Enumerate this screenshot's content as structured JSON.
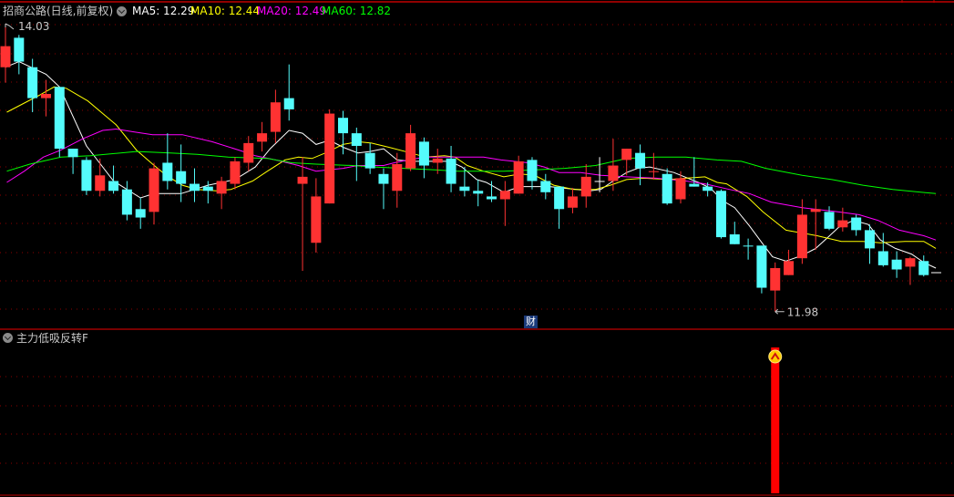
{
  "header": {
    "title": "招商公路(日线,前复权)",
    "ma5_label": "MA5: 12.29",
    "ma10_label": "MA10: 12.44",
    "ma20_label": "MA20: 12.49",
    "ma60_label": "MA60: 12.82"
  },
  "indicator_panel": {
    "title": "主力低吸反转F",
    "signal_candle_index": 58,
    "signal_icon": "up-chevron-circle-icon"
  },
  "finance_marker": {
    "label": "财",
    "candle_index": 40
  },
  "colors": {
    "up": "#ff3232",
    "down": "#54fcfc",
    "flat": "#ffffff",
    "ma5": "#ffffff",
    "ma10": "#ffff00",
    "ma20": "#ff00ff",
    "ma60": "#00ff00",
    "grid": "#8b0000",
    "border": "#c00000",
    "signal_bar": "#ff0000"
  },
  "chart_data": {
    "type": "candlestick",
    "price_high": {
      "label": "14.03",
      "value": 14.03,
      "candle_index": 1
    },
    "price_low": {
      "label": "11.98",
      "value": 11.98,
      "candle_index": 58
    },
    "ohlc_order": [
      "open",
      "high",
      "low",
      "close"
    ],
    "candles": [
      [
        13.72,
        14.03,
        13.61,
        13.87
      ],
      [
        13.93,
        13.95,
        13.67,
        13.76
      ],
      [
        13.72,
        13.78,
        13.4,
        13.5
      ],
      [
        13.5,
        13.63,
        13.37,
        13.53
      ],
      [
        13.58,
        13.58,
        13.08,
        13.14
      ],
      [
        13.14,
        13.14,
        12.96,
        13.08
      ],
      [
        13.06,
        13.08,
        12.81,
        12.84
      ],
      [
        12.84,
        13.07,
        12.8,
        12.95
      ],
      [
        12.91,
        13.02,
        12.82,
        12.84
      ],
      [
        12.85,
        12.91,
        12.63,
        12.67
      ],
      [
        12.71,
        12.79,
        12.57,
        12.65
      ],
      [
        12.69,
        13.04,
        12.6,
        13.0
      ],
      [
        13.04,
        13.25,
        12.85,
        12.91
      ],
      [
        12.98,
        13.17,
        12.76,
        12.89
      ],
      [
        12.89,
        13.0,
        12.76,
        12.84
      ],
      [
        12.87,
        12.91,
        12.75,
        12.84
      ],
      [
        12.82,
        12.94,
        12.71,
        12.91
      ],
      [
        12.89,
        13.08,
        12.85,
        13.05
      ],
      [
        13.04,
        13.23,
        12.98,
        13.18
      ],
      [
        13.19,
        13.33,
        13.12,
        13.25
      ],
      [
        13.26,
        13.56,
        13.18,
        13.47
      ],
      [
        13.5,
        13.74,
        13.34,
        13.42
      ],
      [
        12.89,
        13.08,
        12.27,
        12.94
      ],
      [
        12.47,
        12.93,
        12.4,
        12.8
      ],
      [
        12.75,
        13.42,
        12.75,
        13.39
      ],
      [
        13.36,
        13.41,
        13.1,
        13.25
      ],
      [
        13.25,
        13.29,
        12.91,
        13.16
      ],
      [
        13.11,
        13.18,
        12.96,
        13.0
      ],
      [
        12.96,
        13.0,
        12.71,
        12.89
      ],
      [
        12.84,
        13.11,
        12.72,
        13.03
      ],
      [
        13.0,
        13.31,
        12.98,
        13.25
      ],
      [
        13.19,
        13.22,
        12.93,
        13.02
      ],
      [
        13.04,
        13.14,
        12.96,
        13.07
      ],
      [
        13.07,
        13.16,
        12.83,
        12.89
      ],
      [
        12.87,
        13.01,
        12.8,
        12.84
      ],
      [
        12.84,
        12.92,
        12.73,
        12.82
      ],
      [
        12.8,
        12.91,
        12.76,
        12.78
      ],
      [
        12.78,
        12.91,
        12.59,
        12.84
      ],
      [
        12.82,
        13.09,
        12.82,
        13.05
      ],
      [
        13.06,
        13.08,
        12.85,
        12.91
      ],
      [
        12.91,
        12.96,
        12.78,
        12.83
      ],
      [
        12.87,
        12.87,
        12.57,
        12.71
      ],
      [
        12.72,
        12.86,
        12.68,
        12.8
      ],
      [
        12.8,
        13.03,
        12.72,
        12.94
      ],
      [
        12.91,
        13.08,
        12.83,
        12.91
      ],
      [
        12.91,
        13.21,
        12.84,
        13.02
      ],
      [
        13.06,
        13.14,
        12.95,
        13.14
      ],
      [
        13.11,
        13.17,
        12.88,
        13.0
      ],
      [
        12.98,
        13.11,
        12.92,
        12.98
      ],
      [
        12.96,
        13.0,
        12.74,
        12.75
      ],
      [
        12.78,
        12.98,
        12.75,
        12.93
      ],
      [
        12.89,
        13.08,
        12.87,
        12.87
      ],
      [
        12.87,
        12.9,
        12.8,
        12.84
      ],
      [
        12.84,
        12.85,
        12.5,
        12.51
      ],
      [
        12.53,
        12.62,
        12.46,
        12.46
      ],
      [
        12.45,
        12.5,
        12.35,
        12.45
      ],
      [
        12.45,
        12.45,
        12.11,
        12.15
      ],
      [
        12.13,
        12.33,
        11.98,
        12.29
      ],
      [
        12.24,
        12.42,
        12.24,
        12.34
      ],
      [
        12.36,
        12.78,
        12.32,
        12.67
      ],
      [
        12.69,
        12.78,
        12.42,
        12.71
      ],
      [
        12.69,
        12.73,
        12.56,
        12.57
      ],
      [
        12.58,
        12.72,
        12.55,
        12.63
      ],
      [
        12.65,
        12.67,
        12.52,
        12.56
      ],
      [
        12.56,
        12.6,
        12.32,
        12.43
      ],
      [
        12.41,
        12.54,
        12.3,
        12.31
      ],
      [
        12.35,
        12.41,
        12.22,
        12.28
      ],
      [
        12.3,
        12.37,
        12.17,
        12.36
      ],
      [
        12.34,
        12.38,
        12.23,
        12.24
      ]
    ],
    "flat_candle_colors": {
      "45": "flat",
      "49": "up",
      "56": "down"
    },
    "series": [
      {
        "name": "MA5",
        "points": [
          [
            1,
            13.72
          ],
          [
            2,
            13.76
          ],
          [
            4,
            13.67
          ],
          [
            5,
            13.58
          ],
          [
            7,
            13.16
          ],
          [
            9,
            12.91
          ],
          [
            11,
            12.79
          ],
          [
            12,
            12.82
          ],
          [
            14,
            12.82
          ],
          [
            16,
            12.88
          ],
          [
            18,
            12.92
          ],
          [
            19.5,
            13.01
          ],
          [
            20.6,
            13.14
          ],
          [
            22,
            13.27
          ],
          [
            23,
            13.25
          ],
          [
            24,
            13.17
          ],
          [
            25,
            13.2
          ],
          [
            26,
            13.15
          ],
          [
            27.1,
            13.11
          ],
          [
            28,
            13.12
          ],
          [
            29,
            13.14
          ],
          [
            30,
            13.06
          ],
          [
            31,
            13.05
          ],
          [
            32.8,
            13.05
          ],
          [
            33.9,
            13.05
          ],
          [
            34.8,
            13.01
          ],
          [
            35.9,
            12.92
          ],
          [
            36.6,
            12.9
          ],
          [
            37.9,
            12.83
          ],
          [
            39.1,
            12.87
          ],
          [
            41.3,
            12.87
          ],
          [
            44.3,
            12.84
          ],
          [
            45.1,
            12.85
          ],
          [
            46,
            12.91
          ],
          [
            47,
            12.97
          ],
          [
            47.8,
            13.0
          ],
          [
            48.7,
            13.01
          ],
          [
            50.5,
            12.97
          ],
          [
            52.3,
            12.9
          ],
          [
            53.2,
            12.86
          ],
          [
            54.1,
            12.77
          ],
          [
            55,
            12.72
          ],
          [
            56.1,
            12.59
          ],
          [
            57.1,
            12.46
          ],
          [
            57.8,
            12.37
          ],
          [
            58.8,
            12.34
          ],
          [
            60,
            12.38
          ],
          [
            61,
            12.43
          ],
          [
            61.8,
            12.5
          ],
          [
            62.7,
            12.58
          ],
          [
            63.8,
            12.63
          ],
          [
            64.9,
            12.6
          ],
          [
            65.8,
            12.49
          ],
          [
            66.9,
            12.43
          ],
          [
            68.1,
            12.39
          ],
          [
            69,
            12.33
          ],
          [
            69.9,
            12.29
          ]
        ]
      },
      {
        "name": "MA10",
        "points": [
          [
            1.1,
            13.4
          ],
          [
            3.5,
            13.52
          ],
          [
            4.6,
            13.58
          ],
          [
            5.5,
            13.57
          ],
          [
            7.1,
            13.48
          ],
          [
            9.2,
            13.31
          ],
          [
            10.7,
            13.13
          ],
          [
            11.9,
            13.03
          ],
          [
            12.9,
            12.95
          ],
          [
            14.1,
            12.88
          ],
          [
            15.2,
            12.85
          ],
          [
            16.6,
            12.84
          ],
          [
            17.7,
            12.85
          ],
          [
            19.3,
            12.91
          ],
          [
            20.4,
            12.98
          ],
          [
            21.7,
            13.06
          ],
          [
            22.7,
            13.08
          ],
          [
            23.7,
            13.07
          ],
          [
            24.7,
            13.11
          ],
          [
            26,
            13.17
          ],
          [
            27.1,
            13.19
          ],
          [
            28.1,
            13.18
          ],
          [
            29.4,
            13.15
          ],
          [
            31,
            13.11
          ],
          [
            32.1,
            13.08
          ],
          [
            33.5,
            13.09
          ],
          [
            34.3,
            13.08
          ],
          [
            35.2,
            13.02
          ],
          [
            36.4,
            12.98
          ],
          [
            37.9,
            12.94
          ],
          [
            39.1,
            12.96
          ],
          [
            40.2,
            12.95
          ],
          [
            41.6,
            12.88
          ],
          [
            43.1,
            12.85
          ],
          [
            44.7,
            12.85
          ],
          [
            45.8,
            12.88
          ],
          [
            47,
            12.92
          ],
          [
            48.3,
            12.93
          ],
          [
            50.1,
            12.92
          ],
          [
            51.4,
            12.93
          ],
          [
            52.8,
            12.94
          ],
          [
            53.7,
            12.9
          ],
          [
            54.4,
            12.89
          ],
          [
            55.9,
            12.8
          ],
          [
            57.1,
            12.69
          ],
          [
            58.8,
            12.56
          ],
          [
            61.1,
            12.52
          ],
          [
            62.9,
            12.48
          ],
          [
            64.5,
            12.48
          ],
          [
            65.8,
            12.47
          ],
          [
            67.6,
            12.48
          ],
          [
            69,
            12.48
          ],
          [
            69.9,
            12.43
          ]
        ]
      },
      {
        "name": "MA20",
        "points": [
          [
            1.1,
            12.9
          ],
          [
            2.4,
            12.98
          ],
          [
            3.8,
            13.08
          ],
          [
            5.1,
            13.13
          ],
          [
            6.7,
            13.21
          ],
          [
            8.2,
            13.27
          ],
          [
            9.2,
            13.28
          ],
          [
            10.5,
            13.26
          ],
          [
            11.9,
            13.24
          ],
          [
            14.1,
            13.24
          ],
          [
            16.3,
            13.19
          ],
          [
            18.6,
            13.12
          ],
          [
            19.5,
            13.09
          ],
          [
            21,
            13.06
          ],
          [
            22.7,
            13.02
          ],
          [
            24,
            12.98
          ],
          [
            24.9,
            12.99
          ],
          [
            26,
            13.0
          ],
          [
            27.1,
            13.02
          ],
          [
            29,
            13.02
          ],
          [
            29.8,
            13.04
          ],
          [
            30.8,
            13.06
          ],
          [
            32.1,
            13.08
          ],
          [
            33.9,
            13.08
          ],
          [
            36.4,
            13.08
          ],
          [
            37.7,
            13.06
          ],
          [
            39.7,
            13.04
          ],
          [
            40.9,
            13.01
          ],
          [
            42,
            12.97
          ],
          [
            43.6,
            12.97
          ],
          [
            45.1,
            12.95
          ],
          [
            47,
            12.94
          ],
          [
            49.2,
            12.93
          ],
          [
            51.4,
            12.91
          ],
          [
            52.8,
            12.89
          ],
          [
            54.6,
            12.85
          ],
          [
            56.1,
            12.82
          ],
          [
            57.7,
            12.76
          ],
          [
            60,
            12.72
          ],
          [
            62.7,
            12.69
          ],
          [
            64.2,
            12.67
          ],
          [
            65.6,
            12.63
          ],
          [
            67.2,
            12.56
          ],
          [
            69,
            12.52
          ],
          [
            69.9,
            12.49
          ]
        ]
      },
      {
        "name": "MA60",
        "points": [
          [
            1.1,
            12.98
          ],
          [
            2.8,
            13.03
          ],
          [
            5.1,
            13.08
          ],
          [
            7.3,
            13.09
          ],
          [
            10.7,
            13.12
          ],
          [
            13.2,
            13.11
          ],
          [
            15.2,
            13.1
          ],
          [
            17.5,
            13.08
          ],
          [
            20.4,
            13.07
          ],
          [
            22.2,
            13.04
          ],
          [
            24,
            13.03
          ],
          [
            26.7,
            13.02
          ],
          [
            28.3,
            13.01
          ],
          [
            30.5,
            13.0
          ],
          [
            32.8,
            12.99
          ],
          [
            34.5,
            12.98
          ],
          [
            36.4,
            12.98
          ],
          [
            37.9,
            12.98
          ],
          [
            40.2,
            12.99
          ],
          [
            42.4,
            13.0
          ],
          [
            44.7,
            13.02
          ],
          [
            47,
            13.07
          ],
          [
            49.2,
            13.08
          ],
          [
            51.4,
            13.08
          ],
          [
            53.7,
            13.06
          ],
          [
            55.5,
            13.05
          ],
          [
            57.3,
            13.0
          ],
          [
            60,
            12.95
          ],
          [
            62.2,
            12.92
          ],
          [
            64.5,
            12.88
          ],
          [
            66.7,
            12.85
          ],
          [
            69.9,
            12.82
          ]
        ]
      }
    ]
  }
}
